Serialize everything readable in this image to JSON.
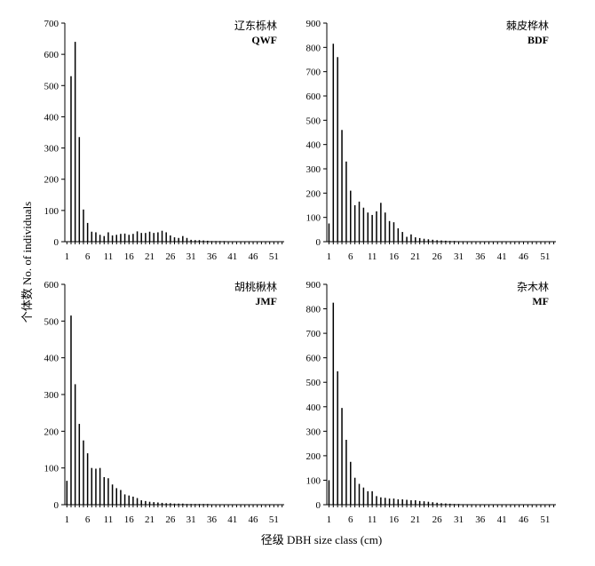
{
  "figure": {
    "ylabel": "个体数  No. of individuals",
    "xlabel": "径级  DBH size class (cm)"
  },
  "chart_data": [
    {
      "type": "bar",
      "title_cn": "辽东栎林",
      "title_en": "QWF",
      "ylim": [
        0,
        700
      ],
      "yticks": [
        0,
        100,
        200,
        300,
        400,
        500,
        600,
        700
      ],
      "xticks": [
        1,
        6,
        11,
        16,
        21,
        26,
        31,
        36,
        41,
        46,
        51
      ],
      "x": [
        1,
        2,
        3,
        4,
        5,
        6,
        7,
        8,
        9,
        10,
        11,
        12,
        13,
        14,
        15,
        16,
        17,
        18,
        19,
        20,
        21,
        22,
        23,
        24,
        25,
        26,
        27,
        28,
        29,
        30,
        31,
        32,
        33,
        34,
        35,
        36,
        37,
        38,
        39,
        40,
        41,
        42,
        43,
        44,
        45,
        46,
        47,
        48,
        49,
        50,
        51,
        52,
        53
      ],
      "values": [
        0,
        530,
        640,
        335,
        103,
        60,
        32,
        30,
        22,
        18,
        30,
        20,
        22,
        25,
        26,
        22,
        25,
        33,
        28,
        28,
        32,
        28,
        30,
        35,
        30,
        20,
        14,
        12,
        18,
        12,
        6,
        5,
        5,
        4,
        3,
        2,
        2,
        2,
        2,
        1,
        1,
        1,
        1,
        1,
        1,
        1,
        0,
        0,
        0,
        0,
        0,
        0,
        0
      ]
    },
    {
      "type": "bar",
      "title_cn": "棘皮桦林",
      "title_en": "BDF",
      "ylim": [
        0,
        900
      ],
      "yticks": [
        0,
        100,
        200,
        300,
        400,
        500,
        600,
        700,
        800,
        900
      ],
      "xticks": [
        1,
        6,
        11,
        16,
        21,
        26,
        31,
        36,
        41,
        46,
        51
      ],
      "x": [
        1,
        2,
        3,
        4,
        5,
        6,
        7,
        8,
        9,
        10,
        11,
        12,
        13,
        14,
        15,
        16,
        17,
        18,
        19,
        20,
        21,
        22,
        23,
        24,
        25,
        26,
        27,
        28,
        29,
        30,
        31,
        32,
        33,
        34,
        35,
        36,
        37,
        38,
        39,
        40,
        41,
        42,
        43,
        44,
        45,
        46,
        47,
        48,
        49,
        50,
        51,
        52,
        53
      ],
      "values": [
        75,
        815,
        760,
        460,
        330,
        210,
        150,
        165,
        140,
        120,
        110,
        125,
        160,
        120,
        85,
        80,
        55,
        40,
        20,
        30,
        18,
        15,
        12,
        10,
        8,
        6,
        5,
        4,
        3,
        3,
        2,
        2,
        1,
        1,
        1,
        1,
        1,
        1,
        1,
        1,
        1,
        1,
        1,
        1,
        1,
        1,
        0,
        0,
        0,
        0,
        0,
        0,
        0
      ]
    },
    {
      "type": "bar",
      "title_cn": "胡桃楸林",
      "title_en": "JMF",
      "ylim": [
        0,
        600
      ],
      "yticks": [
        0,
        100,
        200,
        300,
        400,
        500,
        600
      ],
      "xticks": [
        1,
        6,
        11,
        16,
        21,
        26,
        31,
        36,
        41,
        46,
        51
      ],
      "x": [
        1,
        2,
        3,
        4,
        5,
        6,
        7,
        8,
        9,
        10,
        11,
        12,
        13,
        14,
        15,
        16,
        17,
        18,
        19,
        20,
        21,
        22,
        23,
        24,
        25,
        26,
        27,
        28,
        29,
        30,
        31,
        32,
        33,
        34,
        35,
        36,
        37,
        38,
        39,
        40,
        41,
        42,
        43,
        44,
        45,
        46,
        47,
        48,
        49,
        50,
        51,
        52,
        53
      ],
      "values": [
        65,
        515,
        328,
        220,
        175,
        140,
        100,
        98,
        100,
        75,
        72,
        55,
        45,
        40,
        28,
        25,
        22,
        18,
        12,
        10,
        8,
        7,
        6,
        5,
        4,
        4,
        3,
        3,
        3,
        2,
        2,
        2,
        2,
        2,
        2,
        1,
        1,
        1,
        1,
        1,
        1,
        1,
        0,
        0,
        0,
        0,
        0,
        0,
        0,
        0,
        0,
        0,
        0
      ]
    },
    {
      "type": "bar",
      "title_cn": "杂木林",
      "title_en": "MF",
      "ylim": [
        0,
        900
      ],
      "yticks": [
        0,
        100,
        200,
        300,
        400,
        500,
        600,
        700,
        800,
        900
      ],
      "xticks": [
        1,
        6,
        11,
        16,
        21,
        26,
        31,
        36,
        41,
        46,
        51
      ],
      "x": [
        1,
        2,
        3,
        4,
        5,
        6,
        7,
        8,
        9,
        10,
        11,
        12,
        13,
        14,
        15,
        16,
        17,
        18,
        19,
        20,
        21,
        22,
        23,
        24,
        25,
        26,
        27,
        28,
        29,
        30,
        31,
        32,
        33,
        34,
        35,
        36,
        37,
        38,
        39,
        40,
        41,
        42,
        43,
        44,
        45,
        46,
        47,
        48,
        49,
        50,
        51,
        52,
        53
      ],
      "values": [
        100,
        825,
        545,
        395,
        265,
        175,
        110,
        85,
        70,
        55,
        55,
        35,
        30,
        28,
        25,
        25,
        22,
        22,
        20,
        18,
        18,
        15,
        14,
        12,
        10,
        8,
        6,
        5,
        4,
        3,
        3,
        2,
        2,
        2,
        1,
        1,
        1,
        1,
        1,
        1,
        1,
        0,
        0,
        0,
        0,
        0,
        0,
        0,
        0,
        0,
        0,
        0,
        0
      ]
    }
  ]
}
